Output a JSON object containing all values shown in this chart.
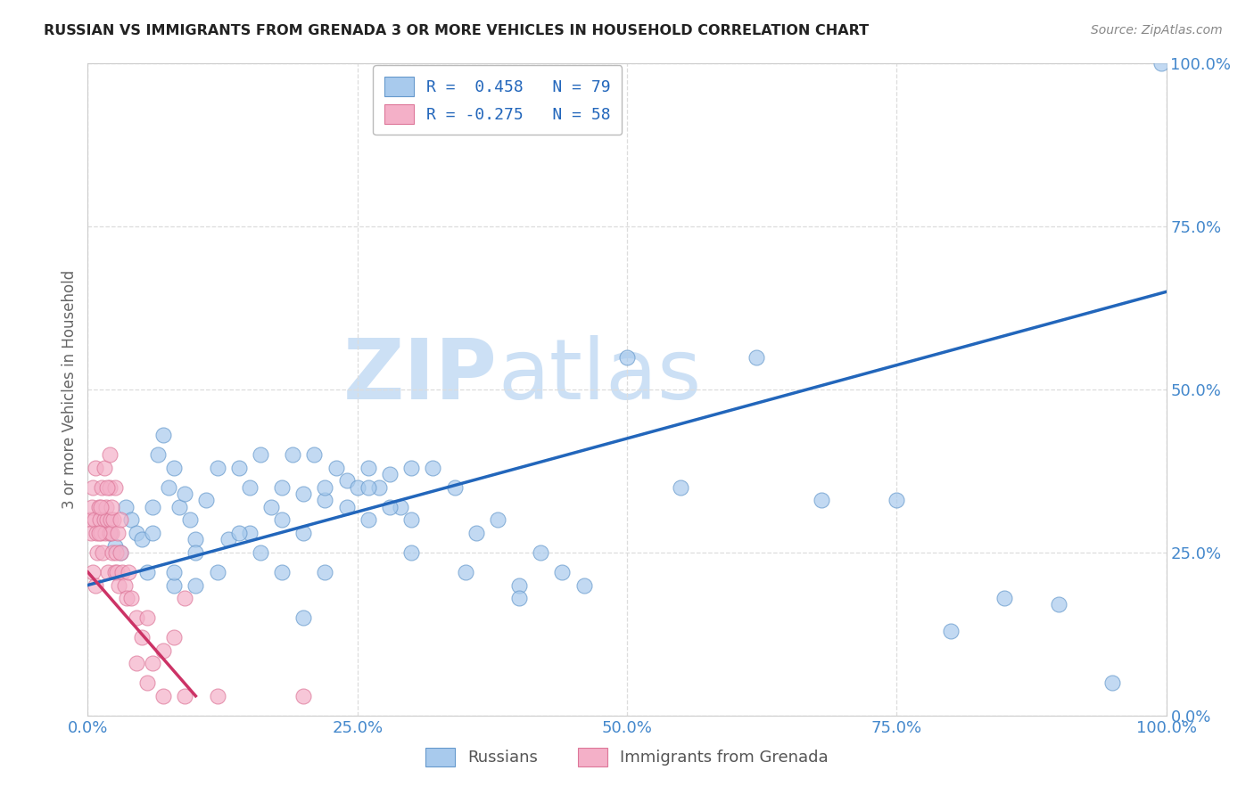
{
  "title": "RUSSIAN VS IMMIGRANTS FROM GRENADA 3 OR MORE VEHICLES IN HOUSEHOLD CORRELATION CHART",
  "source": "Source: ZipAtlas.com",
  "ylabel": "3 or more Vehicles in Household",
  "watermark": "ZIPatlas",
  "bottom_legend_labels": [
    "Russians",
    "Immigrants from Grenada"
  ],
  "legend_r1": "R =  0.458   N = 79",
  "legend_r2": "R = -0.275   N = 58",
  "blue_x": [
    1.5,
    2.0,
    2.5,
    3.0,
    3.5,
    4.0,
    4.5,
    5.0,
    5.5,
    6.0,
    6.5,
    7.0,
    7.5,
    8.0,
    8.5,
    9.0,
    9.5,
    10.0,
    11.0,
    12.0,
    13.0,
    14.0,
    15.0,
    16.0,
    17.0,
    18.0,
    19.0,
    20.0,
    21.0,
    22.0,
    23.0,
    24.0,
    25.0,
    26.0,
    27.0,
    28.0,
    29.0,
    30.0,
    32.0,
    34.0,
    36.0,
    38.0,
    40.0,
    42.0,
    44.0,
    46.0,
    22.0,
    24.0,
    26.0,
    28.0,
    30.0,
    15.0,
    18.0,
    20.0,
    50.0,
    55.0,
    62.0,
    68.0,
    75.0,
    80.0,
    85.0,
    90.0,
    95.0,
    99.5,
    8.0,
    10.0,
    12.0,
    14.0,
    16.0,
    18.0,
    6.0,
    8.0,
    10.0,
    22.0,
    26.0,
    30.0,
    35.0,
    40.0,
    20.0
  ],
  "blue_y": [
    30.0,
    28.0,
    26.0,
    25.0,
    32.0,
    30.0,
    28.0,
    27.0,
    22.0,
    32.0,
    40.0,
    43.0,
    35.0,
    38.0,
    32.0,
    34.0,
    30.0,
    27.0,
    33.0,
    38.0,
    27.0,
    38.0,
    35.0,
    40.0,
    32.0,
    35.0,
    40.0,
    34.0,
    40.0,
    33.0,
    38.0,
    36.0,
    35.0,
    38.0,
    35.0,
    37.0,
    32.0,
    38.0,
    38.0,
    35.0,
    28.0,
    30.0,
    20.0,
    25.0,
    22.0,
    20.0,
    35.0,
    32.0,
    35.0,
    32.0,
    30.0,
    28.0,
    30.0,
    28.0,
    55.0,
    35.0,
    55.0,
    33.0,
    33.0,
    13.0,
    18.0,
    17.0,
    5.0,
    100.0,
    20.0,
    25.0,
    22.0,
    28.0,
    25.0,
    22.0,
    28.0,
    22.0,
    20.0,
    22.0,
    30.0,
    25.0,
    22.0,
    18.0,
    15.0
  ],
  "pink_x": [
    0.2,
    0.3,
    0.4,
    0.5,
    0.6,
    0.7,
    0.8,
    0.9,
    1.0,
    1.1,
    1.2,
    1.3,
    1.4,
    1.5,
    1.6,
    1.7,
    1.8,
    1.9,
    2.0,
    2.1,
    2.2,
    2.3,
    2.4,
    2.5,
    2.6,
    2.7,
    2.8,
    2.9,
    3.0,
    3.2,
    3.4,
    3.6,
    3.8,
    4.0,
    4.5,
    5.0,
    5.5,
    6.0,
    7.0,
    8.0,
    9.0,
    2.0,
    2.2,
    2.5,
    3.0,
    1.5,
    1.8,
    2.0,
    1.0,
    1.2,
    0.5,
    0.7,
    4.5,
    5.5,
    7.0,
    9.0,
    12.0,
    20.0
  ],
  "pink_y": [
    30.0,
    28.0,
    32.0,
    35.0,
    30.0,
    38.0,
    28.0,
    25.0,
    32.0,
    30.0,
    28.0,
    35.0,
    25.0,
    30.0,
    28.0,
    32.0,
    30.0,
    22.0,
    28.0,
    30.0,
    28.0,
    25.0,
    30.0,
    22.0,
    25.0,
    22.0,
    28.0,
    20.0,
    25.0,
    22.0,
    20.0,
    18.0,
    22.0,
    18.0,
    15.0,
    12.0,
    15.0,
    8.0,
    10.0,
    12.0,
    18.0,
    35.0,
    32.0,
    35.0,
    30.0,
    38.0,
    35.0,
    40.0,
    28.0,
    32.0,
    22.0,
    20.0,
    8.0,
    5.0,
    3.0,
    3.0,
    3.0,
    3.0
  ],
  "blue_line_x": [
    0,
    100
  ],
  "blue_line_y": [
    20.0,
    65.0
  ],
  "pink_line_x": [
    0,
    10
  ],
  "pink_line_y": [
    22.0,
    3.0
  ],
  "xlim": [
    0,
    100
  ],
  "ylim": [
    0,
    100
  ],
  "xticks": [
    0,
    25,
    50,
    75,
    100
  ],
  "yticks": [
    0,
    25,
    50,
    75,
    100
  ],
  "xtick_labels": [
    "0.0%",
    "25.0%",
    "50.0%",
    "75.0%",
    "100.0%"
  ],
  "ytick_labels": [
    "0.0%",
    "25.0%",
    "50.0%",
    "75.0%",
    "100.0%"
  ],
  "blue_scatter_color": "#a8caed",
  "blue_edge_color": "#6699cc",
  "pink_scatter_color": "#f4b0c8",
  "pink_edge_color": "#dd7799",
  "blue_line_color": "#2266bb",
  "pink_line_color": "#cc3366",
  "grid_color": "#dddddd",
  "bg_color": "#ffffff",
  "watermark_color": "#cce0f5",
  "title_color": "#222222",
  "source_color": "#888888",
  "tick_color": "#4488cc",
  "ylabel_color": "#666666"
}
